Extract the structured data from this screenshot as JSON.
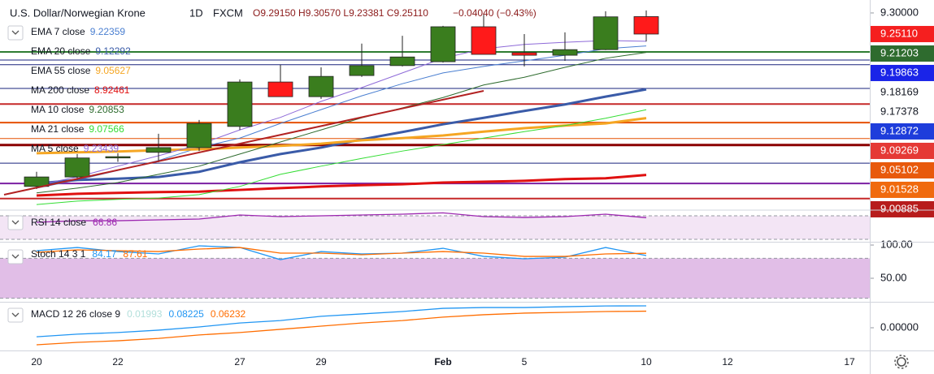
{
  "chart_data": [
    {
      "type": "candlestick",
      "title": "U.S. Dollar/Norwegian Krone",
      "interval": "1D",
      "source": "FXCM",
      "ohlc": "O9.29150 H9.30570 L9.23381 C9.25110",
      "change": "−0.04040 (−0.43%)",
      "categories": [
        "20",
        null,
        "22",
        null,
        null,
        "27",
        null,
        "29",
        null,
        null,
        "Feb",
        null,
        "5",
        null,
        null,
        "10",
        null,
        "12",
        null,
        null,
        "17"
      ],
      "open": [
        8.898,
        8.92,
        8.964,
        8.977,
        8.988,
        9.037,
        9.14,
        9.106,
        9.155,
        9.178,
        9.187,
        9.268,
        9.208,
        9.202,
        9.215,
        9.2915,
        null,
        null,
        null,
        null,
        null
      ],
      "high": [
        8.932,
        8.973,
        8.975,
        9.02,
        9.052,
        9.146,
        9.18,
        9.174,
        9.229,
        9.247,
        9.27,
        9.296,
        9.251,
        9.255,
        9.304,
        9.3057,
        null,
        null,
        null,
        null,
        null
      ],
      "low": [
        8.892,
        8.913,
        8.955,
        8.954,
        8.98,
        9.029,
        9.106,
        9.101,
        9.152,
        9.176,
        9.185,
        9.204,
        9.176,
        9.189,
        9.214,
        9.23381,
        null,
        null,
        null,
        null,
        null
      ],
      "close": [
        8.92,
        8.964,
        8.967,
        8.988,
        9.044,
        9.14,
        9.106,
        9.153,
        9.178,
        9.198,
        9.268,
        9.204,
        9.202,
        9.215,
        9.291,
        9.2511,
        null,
        null,
        null,
        null,
        null
      ],
      "up_color": "#3a7d1e",
      "down_color": "#ff1a1a",
      "ylim": [
        8.845,
        9.33
      ],
      "yticks": [
        {
          "value": 9.3,
          "label": "9.30000"
        }
      ],
      "series": [
        {
          "name": "EMA 7 close",
          "color": "#4a7fd1",
          "width": 1,
          "values": [
            8.894,
            8.913,
            8.935,
            8.958,
            8.988,
            9.01,
            9.044,
            9.076,
            9.108,
            9.136,
            9.161,
            9.176,
            9.189,
            9.202,
            9.217,
            9.22359,
            null,
            null,
            null,
            null,
            null
          ]
        },
        {
          "name": "EMA 20 close",
          "color": "#3a5ba8",
          "width": 3,
          "values": [
            8.905,
            8.913,
            8.916,
            8.92,
            8.932,
            8.954,
            8.973,
            8.988,
            9.007,
            9.024,
            9.042,
            9.057,
            9.073,
            9.088,
            9.106,
            9.12292,
            null,
            null,
            null,
            null,
            null
          ]
        },
        {
          "name": "EMA 55 close",
          "color": "#f5a623",
          "width": 3,
          "values": [
            8.975,
            8.977,
            8.979,
            8.982,
            8.984,
            8.988,
            8.992,
            8.997,
            9.005,
            9.01,
            9.016,
            9.025,
            9.033,
            9.039,
            9.044,
            9.05627,
            null,
            null,
            null,
            null,
            null
          ]
        },
        {
          "name": "MA 200 close",
          "color": "#e01010",
          "width": 3,
          "values": [
            8.877,
            8.881,
            8.883,
            8.885,
            8.886,
            8.89,
            8.894,
            8.898,
            8.901,
            8.903,
            8.907,
            8.909,
            8.911,
            8.915,
            8.917,
            8.92461,
            null,
            null,
            null,
            null,
            null
          ]
        },
        {
          "name": "MA 10 close",
          "color": "#2e6b2e",
          "width": 1,
          "values": [
            8.883,
            8.894,
            8.907,
            8.926,
            8.945,
            8.973,
            9.001,
            9.029,
            9.057,
            9.08,
            9.104,
            9.133,
            9.151,
            9.174,
            9.195,
            9.20853,
            null,
            null,
            null,
            null,
            null
          ]
        },
        {
          "name": "MA 21 close",
          "color": "#33dd33",
          "width": 1,
          "values": [
            8.856,
            8.864,
            8.868,
            8.871,
            8.879,
            8.898,
            8.926,
            8.945,
            8.963,
            8.98,
            8.995,
            9.01,
            9.025,
            9.039,
            9.056,
            9.07566,
            null,
            null,
            null,
            null,
            null
          ]
        },
        {
          "name": "MA 5 close",
          "color": "#8e6ad8",
          "width": 1,
          "values": [
            8.901,
            8.92,
            8.945,
            8.969,
            8.995,
            9.029,
            9.058,
            9.095,
            9.127,
            9.161,
            9.195,
            9.217,
            9.227,
            9.232,
            9.236,
            9.23439,
            null,
            null,
            null,
            null,
            null
          ]
        }
      ],
      "levels": [
        {
          "value": 9.2098,
          "color": "#2e7d32",
          "width": 2
        },
        {
          "value": 9.191,
          "color": "#1a237e",
          "width": 1
        },
        {
          "value": 9.18,
          "color": "#1a237e",
          "width": 1
        },
        {
          "value": 9.125,
          "color": "#1a237e",
          "width": 1
        },
        {
          "value": 9.089,
          "color": "#c62828",
          "width": 2
        },
        {
          "value": 9.046,
          "color": "#e65100",
          "width": 2
        },
        {
          "value": 9.009,
          "color": "#e65100",
          "width": 1
        },
        {
          "value": 8.994,
          "color": "#8b0000",
          "width": 3
        },
        {
          "value": 8.952,
          "color": "#1a237e",
          "width": 1
        },
        {
          "value": 8.905,
          "color": "#7b1fa2",
          "width": 2
        },
        {
          "value": 8.87,
          "color": "#c62828",
          "width": 2
        }
      ],
      "price_labels": [
        {
          "value": 9.2511,
          "label": "9.25110",
          "color": "#f51f1f",
          "text_color": "#ffffff"
        },
        {
          "value": 9.21203,
          "label": "9.21203",
          "color": "#2e6b2e",
          "text_color": "#ffffff"
        },
        {
          "value": 9.19863,
          "label": "9.19863",
          "color": "#1a24e8",
          "text_color": "#ffffff"
        },
        {
          "value": 9.18169,
          "label": "9.18169",
          "color": "#ffffff",
          "text_color": "#131722"
        },
        {
          "value": 9.17378,
          "label": "9.17378",
          "color": "#ffffff",
          "text_color": "#131722"
        },
        {
          "value": 9.12872,
          "label": "9.12872",
          "color": "#1e3ddb",
          "text_color": "#ffffff"
        },
        {
          "value": 9.09269,
          "label": "9.09269",
          "color": "#e53935",
          "text_color": "#ffffff"
        },
        {
          "value": 9.05102,
          "label": "9.05102",
          "color": "#e8590c",
          "text_color": "#ffffff"
        },
        {
          "value": 9.01528,
          "label": "9.01528",
          "color": "#f06a0e",
          "text_color": "#ffffff"
        },
        {
          "value": 9.00885,
          "label": "9.00885",
          "color": "#b71c1c",
          "text_color": "#ffffff"
        }
      ]
    },
    {
      "type": "line",
      "title": "RSI 14 close",
      "ylim": [
        25.9,
        78.3
      ],
      "bands": [
        30,
        70
      ],
      "band_fill": "rgba(156,39,176,0.12)",
      "series": [
        {
          "color": "#9c27b0",
          "values": [
            59,
            61.7,
            61.7,
            63.1,
            64.5,
            71.4,
            68.6,
            70,
            71.4,
            72.8,
            75,
            68.6,
            67.2,
            68.6,
            72.8,
            66.86,
            null,
            null,
            null,
            null,
            null
          ]
        }
      ]
    },
    {
      "type": "line",
      "title": "Stoch 14 3 1",
      "ylim": [
        14.6,
        103.7
      ],
      "bands": [
        20,
        80
      ],
      "band_fill": "rgba(156,39,176,0.3)",
      "yticks": [
        {
          "value": 100,
          "label": "100.00"
        },
        {
          "value": 50,
          "label": "50.00"
        }
      ],
      "series": [
        {
          "color": "#2196f3",
          "values": [
            91.5,
            96.3,
            90.2,
            86.6,
            98.8,
            96.3,
            78,
            90.2,
            86.6,
            87.8,
            95.1,
            82.9,
            79.3,
            81.7,
            96.3,
            84.17,
            null,
            null,
            null,
            null,
            null
          ]
        },
        {
          "color": "#ff6d00",
          "values": [
            89,
            92.7,
            91.5,
            90.2,
            93.9,
            96.3,
            87.8,
            87.8,
            85.4,
            87.8,
            90.2,
            87.8,
            82.9,
            82.9,
            86.6,
            87.61,
            null,
            null,
            null,
            null,
            null
          ]
        }
      ]
    },
    {
      "type": "line",
      "title": "MACD 12 26 close 9",
      "ylim": [
        -0.0854,
        0.0945
      ],
      "histogram_value": 0.01993,
      "histogram_color": "#b2dfdb",
      "yticks": [
        {
          "value": 0,
          "label": "0.00000"
        }
      ],
      "series": [
        {
          "color": "#2196f3",
          "values": [
            -0.034,
            -0.024,
            -0.018,
            -0.009,
            0.003,
            0.018,
            0.027,
            0.043,
            0.052,
            0.061,
            0.073,
            0.076,
            0.076,
            0.079,
            0.082,
            0.08225,
            null,
            null,
            null,
            null,
            null
          ]
        },
        {
          "color": "#ff6d00",
          "values": [
            -0.064,
            -0.055,
            -0.049,
            -0.04,
            -0.027,
            -0.018,
            -0.006,
            0.006,
            0.018,
            0.027,
            0.04,
            0.049,
            0.055,
            0.058,
            0.061,
            0.06232,
            null,
            null,
            null,
            null,
            null
          ]
        }
      ]
    }
  ]
}
